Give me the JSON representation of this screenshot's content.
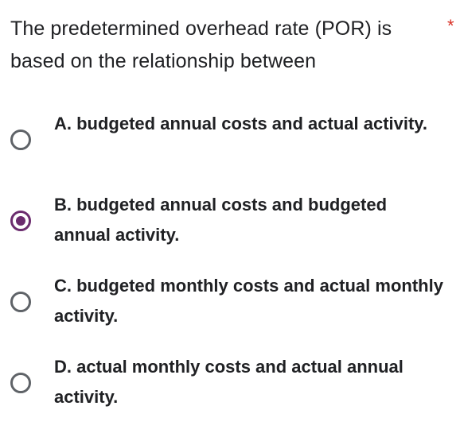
{
  "question": {
    "text": "The predetermined overhead rate (POR) is based on the relationship between",
    "required_marker": "*"
  },
  "options": [
    {
      "label": "A. budgeted annual costs and actual activity.",
      "selected": false
    },
    {
      "label": "B. budgeted annual costs and budgeted annual activity.",
      "selected": true
    },
    {
      "label": "C. budgeted monthly costs and actual monthly activity.",
      "selected": false
    },
    {
      "label": "D. actual monthly costs and actual annual activity.",
      "selected": false
    }
  ],
  "colors": {
    "selected_radio": "#6b2c6e",
    "unselected_radio": "#5f6368",
    "required_marker": "#d93025",
    "text": "#202124"
  },
  "icons": {
    "radio_unchecked": "radio-unchecked-icon",
    "radio_checked": "radio-checked-icon"
  }
}
